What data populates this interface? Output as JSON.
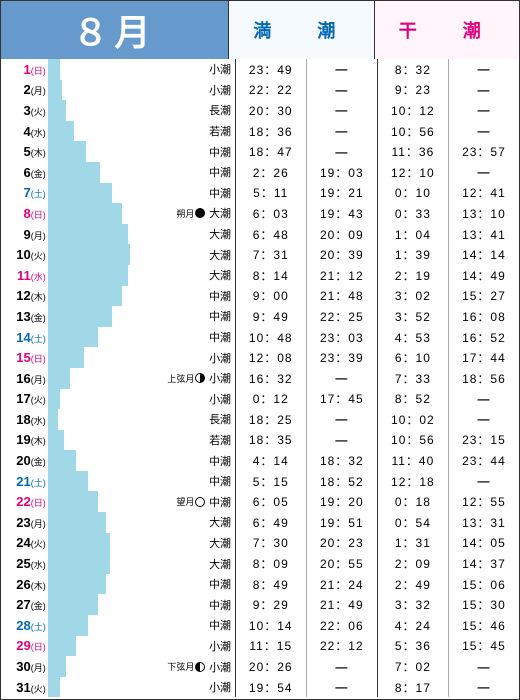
{
  "header": {
    "month": "８月",
    "high": "満　潮",
    "low": "干　潮",
    "month_bg": "#6699cc",
    "month_color": "#ffffff",
    "high_bg": "#f5faff",
    "high_color": "#0068b7",
    "low_bg": "#fff5fa",
    "low_color": "#e4007f"
  },
  "colors": {
    "bar": "#a0d8e8",
    "sunday": "#e4007f",
    "saturday": "#0068b7",
    "weekday": "#000000"
  },
  "bar_range": {
    "min": 0,
    "max": 112
  },
  "rows": [
    {
      "day": "1",
      "wd": "(日)",
      "cls": "sun",
      "bar_start": 0,
      "bar_end": 12,
      "moon": "",
      "icon": "",
      "tide": "小潮",
      "h1": "23：49",
      "h2": "—",
      "l1": "8：32",
      "l2": "—"
    },
    {
      "day": "2",
      "wd": "(月)",
      "cls": "normal",
      "bar_start": 0,
      "bar_end": 14,
      "moon": "",
      "icon": "",
      "tide": "小潮",
      "h1": "22：22",
      "h2": "—",
      "l1": "9：23",
      "l2": "—"
    },
    {
      "day": "3",
      "wd": "(火)",
      "cls": "normal",
      "bar_start": 0,
      "bar_end": 18,
      "moon": "",
      "icon": "",
      "tide": "長潮",
      "h1": "20：30",
      "h2": "—",
      "l1": "10：12",
      "l2": "—"
    },
    {
      "day": "4",
      "wd": "(水)",
      "cls": "normal",
      "bar_start": 0,
      "bar_end": 26,
      "moon": "",
      "icon": "",
      "tide": "若潮",
      "h1": "18：36",
      "h2": "—",
      "l1": "10：56",
      "l2": "—"
    },
    {
      "day": "5",
      "wd": "(木)",
      "cls": "normal",
      "bar_start": 0,
      "bar_end": 38,
      "moon": "",
      "icon": "",
      "tide": "中潮",
      "h1": "18：47",
      "h2": "—",
      "l1": "11：36",
      "l2": "23：57"
    },
    {
      "day": "6",
      "wd": "(金)",
      "cls": "normal",
      "bar_start": 0,
      "bar_end": 52,
      "moon": "",
      "icon": "",
      "tide": "中潮",
      "h1": "2：26",
      "h2": "19：03",
      "l1": "12：10",
      "l2": "—"
    },
    {
      "day": "7",
      "wd": "(土)",
      "cls": "sat",
      "bar_start": 0,
      "bar_end": 64,
      "moon": "",
      "icon": "",
      "tide": "中潮",
      "h1": "5：11",
      "h2": "19：21",
      "l1": "0：10",
      "l2": "12：41"
    },
    {
      "day": "8",
      "wd": "(日)",
      "cls": "sun",
      "bar_start": 0,
      "bar_end": 74,
      "moon": "朔月",
      "icon": "full-black",
      "tide": "大潮",
      "h1": "6：03",
      "h2": "19：43",
      "l1": "0：33",
      "l2": "13：10"
    },
    {
      "day": "9",
      "wd": "(月)",
      "cls": "normal",
      "bar_start": 0,
      "bar_end": 80,
      "moon": "",
      "icon": "",
      "tide": "大潮",
      "h1": "6：48",
      "h2": "20：09",
      "l1": "1：04",
      "l2": "13：41"
    },
    {
      "day": "10",
      "wd": "(火)",
      "cls": "normal",
      "bar_start": 0,
      "bar_end": 82,
      "moon": "",
      "icon": "",
      "tide": "大潮",
      "h1": "7：31",
      "h2": "20：39",
      "l1": "1：39",
      "l2": "14：14"
    },
    {
      "day": "11",
      "wd": "(水)",
      "cls": "sun",
      "bar_start": 0,
      "bar_end": 80,
      "moon": "",
      "icon": "",
      "tide": "大潮",
      "h1": "8：14",
      "h2": "21：12",
      "l1": "2：19",
      "l2": "14：49"
    },
    {
      "day": "12",
      "wd": "(木)",
      "cls": "normal",
      "bar_start": 0,
      "bar_end": 74,
      "moon": "",
      "icon": "",
      "tide": "中潮",
      "h1": "9：00",
      "h2": "21：48",
      "l1": "3：02",
      "l2": "15：27"
    },
    {
      "day": "13",
      "wd": "(金)",
      "cls": "normal",
      "bar_start": 0,
      "bar_end": 64,
      "moon": "",
      "icon": "",
      "tide": "中潮",
      "h1": "9：49",
      "h2": "22：25",
      "l1": "3：52",
      "l2": "16：08"
    },
    {
      "day": "14",
      "wd": "(土)",
      "cls": "sat",
      "bar_start": 0,
      "bar_end": 50,
      "moon": "",
      "icon": "",
      "tide": "中潮",
      "h1": "10：48",
      "h2": "23：03",
      "l1": "4：53",
      "l2": "16：52"
    },
    {
      "day": "15",
      "wd": "(日)",
      "cls": "sun",
      "bar_start": 0,
      "bar_end": 36,
      "moon": "",
      "icon": "",
      "tide": "小潮",
      "h1": "12：08",
      "h2": "23：39",
      "l1": "6：10",
      "l2": "17：44"
    },
    {
      "day": "16",
      "wd": "(月)",
      "cls": "normal",
      "bar_start": 0,
      "bar_end": 22,
      "moon": "上弦月",
      "icon": "half-right",
      "tide": "小潮",
      "h1": "16：32",
      "h2": "—",
      "l1": "7：33",
      "l2": "18：56"
    },
    {
      "day": "17",
      "wd": "(火)",
      "cls": "normal",
      "bar_start": 0,
      "bar_end": 12,
      "moon": "",
      "icon": "",
      "tide": "小潮",
      "h1": "0：12",
      "h2": "17：45",
      "l1": "8：52",
      "l2": "—"
    },
    {
      "day": "18",
      "wd": "(水)",
      "cls": "normal",
      "bar_start": 0,
      "bar_end": 10,
      "moon": "",
      "icon": "",
      "tide": "長潮",
      "h1": "18：25",
      "h2": "—",
      "l1": "10：02",
      "l2": "—"
    },
    {
      "day": "19",
      "wd": "(木)",
      "cls": "normal",
      "bar_start": 0,
      "bar_end": 16,
      "moon": "",
      "icon": "",
      "tide": "若潮",
      "h1": "18：35",
      "h2": "—",
      "l1": "10：56",
      "l2": "23：15"
    },
    {
      "day": "20",
      "wd": "(金)",
      "cls": "normal",
      "bar_start": 0,
      "bar_end": 28,
      "moon": "",
      "icon": "",
      "tide": "中潮",
      "h1": "4：14",
      "h2": "18：32",
      "l1": "11：40",
      "l2": "23：44"
    },
    {
      "day": "21",
      "wd": "(土)",
      "cls": "sat",
      "bar_start": 0,
      "bar_end": 40,
      "moon": "",
      "icon": "",
      "tide": "中潮",
      "h1": "5：15",
      "h2": "18：52",
      "l1": "12：18",
      "l2": "—"
    },
    {
      "day": "22",
      "wd": "(日)",
      "cls": "sun",
      "bar_start": 0,
      "bar_end": 50,
      "moon": "望月",
      "icon": "empty",
      "tide": "中潮",
      "h1": "6：05",
      "h2": "19：20",
      "l1": "0：18",
      "l2": "12：55"
    },
    {
      "day": "23",
      "wd": "(月)",
      "cls": "normal",
      "bar_start": 0,
      "bar_end": 58,
      "moon": "",
      "icon": "",
      "tide": "大潮",
      "h1": "6：49",
      "h2": "19：51",
      "l1": "0：54",
      "l2": "13：31"
    },
    {
      "day": "24",
      "wd": "(火)",
      "cls": "normal",
      "bar_start": 0,
      "bar_end": 62,
      "moon": "",
      "icon": "",
      "tide": "大潮",
      "h1": "7：30",
      "h2": "20：23",
      "l1": "1：31",
      "l2": "14：05"
    },
    {
      "day": "25",
      "wd": "(水)",
      "cls": "normal",
      "bar_start": 0,
      "bar_end": 62,
      "moon": "",
      "icon": "",
      "tide": "大潮",
      "h1": "8：09",
      "h2": "20：55",
      "l1": "2：09",
      "l2": "14：37"
    },
    {
      "day": "26",
      "wd": "(木)",
      "cls": "normal",
      "bar_start": 0,
      "bar_end": 58,
      "moon": "",
      "icon": "",
      "tide": "中潮",
      "h1": "8：49",
      "h2": "21：24",
      "l1": "2：49",
      "l2": "15：06"
    },
    {
      "day": "27",
      "wd": "(金)",
      "cls": "normal",
      "bar_start": 0,
      "bar_end": 50,
      "moon": "",
      "icon": "",
      "tide": "中潮",
      "h1": "9：29",
      "h2": "21：49",
      "l1": "3：32",
      "l2": "15：30"
    },
    {
      "day": "28",
      "wd": "(土)",
      "cls": "sat",
      "bar_start": 0,
      "bar_end": 40,
      "moon": "",
      "icon": "",
      "tide": "中潮",
      "h1": "10：14",
      "h2": "22：06",
      "l1": "4：24",
      "l2": "15：46"
    },
    {
      "day": "29",
      "wd": "(日)",
      "cls": "sun",
      "bar_start": 0,
      "bar_end": 28,
      "moon": "",
      "icon": "",
      "tide": "小潮",
      "h1": "11：15",
      "h2": "22：12",
      "l1": "5：36",
      "l2": "15：45"
    },
    {
      "day": "30",
      "wd": "(月)",
      "cls": "normal",
      "bar_start": 0,
      "bar_end": 18,
      "moon": "下弦月",
      "icon": "half-left",
      "tide": "小潮",
      "h1": "20：26",
      "h2": "—",
      "l1": "7：02",
      "l2": "—"
    },
    {
      "day": "31",
      "wd": "(火)",
      "cls": "normal",
      "bar_start": 0,
      "bar_end": 12,
      "moon": "",
      "icon": "",
      "tide": "小潮",
      "h1": "19：54",
      "h2": "—",
      "l1": "8：17",
      "l2": "—"
    }
  ]
}
